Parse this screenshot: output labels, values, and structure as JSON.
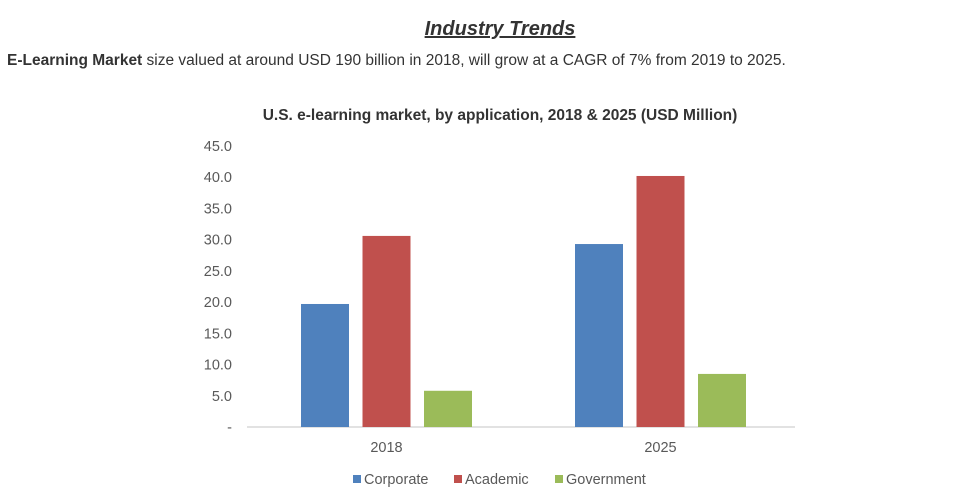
{
  "page": {
    "heading": "Industry Trends",
    "intro_bold": "E-Learning Market",
    "intro_rest": " size valued at around USD 190 billion in 2018, will grow at a CAGR of 7% from 2019 to 2025."
  },
  "chart_data": {
    "type": "bar",
    "title": "U.S. e-learning market, by application, 2018 & 2025 (USD Million)",
    "xlabel": "",
    "ylabel": "",
    "categories": [
      "2018",
      "2025"
    ],
    "series": [
      {
        "name": "Corporate",
        "color": "#4f81bd",
        "values": [
          19.7,
          29.3
        ]
      },
      {
        "name": "Academic",
        "color": "#c0504d",
        "values": [
          30.6,
          40.2
        ]
      },
      {
        "name": "Government",
        "color": "#9bbb59",
        "values": [
          5.8,
          8.5
        ]
      }
    ],
    "ylim": [
      0,
      45
    ],
    "yticks": [
      0,
      5,
      10,
      15,
      20,
      25,
      30,
      35,
      40,
      45
    ],
    "ytick_labels": [
      "-",
      "5.0",
      "10.0",
      "15.0",
      "20.0",
      "25.0",
      "30.0",
      "35.0",
      "40.0",
      "45.0"
    ],
    "grid": false,
    "legend": "bottom"
  }
}
